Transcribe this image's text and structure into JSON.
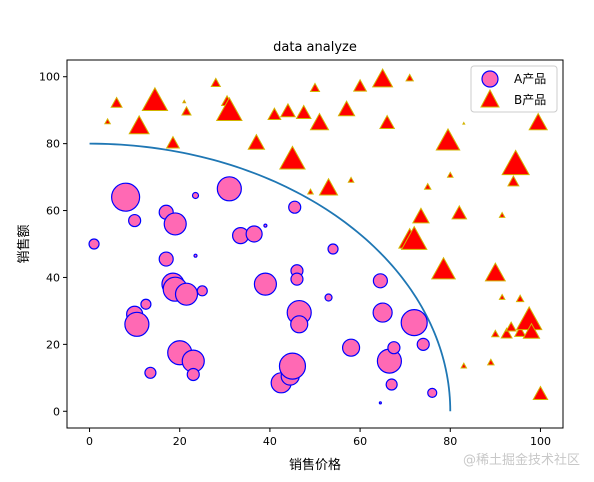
{
  "chart_data": {
    "type": "scatter",
    "title": "data analyze",
    "xlabel": "销售价格",
    "ylabel": "销售额",
    "xlim": [
      -5,
      105
    ],
    "ylim": [
      -5,
      105
    ],
    "xticks": [
      0,
      20,
      40,
      60,
      80,
      100
    ],
    "yticks": [
      0,
      20,
      40,
      60,
      80,
      100
    ],
    "grid": false,
    "legend_position": "top-right",
    "curve": {
      "type": "quarter-circle",
      "radius": 80,
      "color": "#1f77b4"
    },
    "series": [
      {
        "name": "A产品",
        "marker": "circle",
        "fill": "#ff69b4",
        "edge": "#0000ff",
        "points": [
          {
            "x": 1,
            "y": 50,
            "s": 5
          },
          {
            "x": 8,
            "y": 64,
            "s": 14
          },
          {
            "x": 10,
            "y": 57,
            "s": 6
          },
          {
            "x": 10,
            "y": 29,
            "s": 8
          },
          {
            "x": 10.5,
            "y": 26,
            "s": 12
          },
          {
            "x": 12.5,
            "y": 32,
            "s": 5
          },
          {
            "x": 13.5,
            "y": 11.5,
            "s": 5.5
          },
          {
            "x": 17,
            "y": 59.5,
            "s": 7
          },
          {
            "x": 17,
            "y": 45.5,
            "s": 7
          },
          {
            "x": 19,
            "y": 56,
            "s": 11
          },
          {
            "x": 18.5,
            "y": 38,
            "s": 11
          },
          {
            "x": 19,
            "y": 36.5,
            "s": 12
          },
          {
            "x": 21.5,
            "y": 35,
            "s": 11
          },
          {
            "x": 20,
            "y": 17.5,
            "s": 12
          },
          {
            "x": 23,
            "y": 15,
            "s": 11
          },
          {
            "x": 23,
            "y": 11,
            "s": 6
          },
          {
            "x": 23.5,
            "y": 64.5,
            "s": 3
          },
          {
            "x": 23.5,
            "y": 46.5,
            "s": 1.5
          },
          {
            "x": 25,
            "y": 36,
            "s": 5
          },
          {
            "x": 31,
            "y": 66.5,
            "s": 12
          },
          {
            "x": 33.5,
            "y": 52.5,
            "s": 8
          },
          {
            "x": 36.5,
            "y": 53,
            "s": 8
          },
          {
            "x": 39,
            "y": 55.5,
            "s": 1.5
          },
          {
            "x": 39,
            "y": 38,
            "s": 11
          },
          {
            "x": 42.5,
            "y": 8.5,
            "s": 10
          },
          {
            "x": 44.5,
            "y": 10.5,
            "s": 9
          },
          {
            "x": 45,
            "y": 13.5,
            "s": 13
          },
          {
            "x": 45.5,
            "y": 61,
            "s": 6
          },
          {
            "x": 46,
            "y": 42,
            "s": 6
          },
          {
            "x": 46,
            "y": 39.5,
            "s": 6
          },
          {
            "x": 46.5,
            "y": 29.5,
            "s": 12
          },
          {
            "x": 46.5,
            "y": 26,
            "s": 8.5
          },
          {
            "x": 53,
            "y": 34,
            "s": 3.5
          },
          {
            "x": 54,
            "y": 48.5,
            "s": 5
          },
          {
            "x": 58,
            "y": 19,
            "s": 8.5
          },
          {
            "x": 64.5,
            "y": 2.5,
            "s": 1
          },
          {
            "x": 64.5,
            "y": 39,
            "s": 7
          },
          {
            "x": 65,
            "y": 29.5,
            "s": 9.5
          },
          {
            "x": 66.5,
            "y": 15,
            "s": 12
          },
          {
            "x": 67,
            "y": 8,
            "s": 5.5
          },
          {
            "x": 67.5,
            "y": 19,
            "s": 6
          },
          {
            "x": 72,
            "y": 26.5,
            "s": 13
          },
          {
            "x": 74,
            "y": 20,
            "s": 6
          },
          {
            "x": 76,
            "y": 5.5,
            "s": 4.5
          }
        ]
      },
      {
        "name": "B产品",
        "marker": "triangle",
        "fill": "#ff0000",
        "edge": "#d2b400",
        "points": [
          {
            "x": 4,
            "y": 86.5,
            "s": 3
          },
          {
            "x": 6,
            "y": 92,
            "s": 6
          },
          {
            "x": 11,
            "y": 85,
            "s": 11
          },
          {
            "x": 14.5,
            "y": 92.5,
            "s": 14
          },
          {
            "x": 18.5,
            "y": 80,
            "s": 7
          },
          {
            "x": 21,
            "y": 92.5,
            "s": 1.5
          },
          {
            "x": 21.5,
            "y": 89.5,
            "s": 5
          },
          {
            "x": 28,
            "y": 98,
            "s": 5
          },
          {
            "x": 30.5,
            "y": 92.5,
            "s": 6
          },
          {
            "x": 31,
            "y": 89.5,
            "s": 14
          },
          {
            "x": 37,
            "y": 80,
            "s": 9
          },
          {
            "x": 41,
            "y": 88.5,
            "s": 7
          },
          {
            "x": 44,
            "y": 89.5,
            "s": 8
          },
          {
            "x": 45,
            "y": 75,
            "s": 14
          },
          {
            "x": 47.5,
            "y": 89,
            "s": 8
          },
          {
            "x": 49,
            "y": 65.5,
            "s": 3
          },
          {
            "x": 50,
            "y": 96.5,
            "s": 5
          },
          {
            "x": 51,
            "y": 86,
            "s": 10
          },
          {
            "x": 53,
            "y": 66.5,
            "s": 10
          },
          {
            "x": 57,
            "y": 90,
            "s": 9
          },
          {
            "x": 58,
            "y": 69,
            "s": 3
          },
          {
            "x": 60,
            "y": 97,
            "s": 7
          },
          {
            "x": 65,
            "y": 99,
            "s": 11
          },
          {
            "x": 66,
            "y": 86,
            "s": 8
          },
          {
            "x": 71,
            "y": 99.5,
            "s": 4
          },
          {
            "x": 71,
            "y": 51,
            "s": 12
          },
          {
            "x": 72,
            "y": 51,
            "s": 14
          },
          {
            "x": 73.5,
            "y": 58,
            "s": 9
          },
          {
            "x": 75,
            "y": 67,
            "s": 3.5
          },
          {
            "x": 78.5,
            "y": 42,
            "s": 13
          },
          {
            "x": 79.5,
            "y": 80.5,
            "s": 13
          },
          {
            "x": 80,
            "y": 70.5,
            "s": 3
          },
          {
            "x": 82,
            "y": 59,
            "s": 8
          },
          {
            "x": 83,
            "y": 13.5,
            "s": 3
          },
          {
            "x": 83,
            "y": 86,
            "s": 1
          },
          {
            "x": 89,
            "y": 14.5,
            "s": 3.5
          },
          {
            "x": 90,
            "y": 41,
            "s": 11
          },
          {
            "x": 90,
            "y": 23,
            "s": 4
          },
          {
            "x": 91.5,
            "y": 58.5,
            "s": 3
          },
          {
            "x": 91.5,
            "y": 34,
            "s": 3
          },
          {
            "x": 92.5,
            "y": 23,
            "s": 6
          },
          {
            "x": 93.5,
            "y": 25,
            "s": 5.5
          },
          {
            "x": 94,
            "y": 68.5,
            "s": 6
          },
          {
            "x": 94.5,
            "y": 73.5,
            "s": 15
          },
          {
            "x": 95.5,
            "y": 33.5,
            "s": 4
          },
          {
            "x": 95.5,
            "y": 23.5,
            "s": 6
          },
          {
            "x": 97.5,
            "y": 27,
            "s": 14
          },
          {
            "x": 98,
            "y": 23.5,
            "s": 9
          },
          {
            "x": 99.5,
            "y": 86,
            "s": 10
          },
          {
            "x": 100,
            "y": 5,
            "s": 8
          }
        ]
      }
    ]
  },
  "watermark": "@稀土掘金技术社区"
}
